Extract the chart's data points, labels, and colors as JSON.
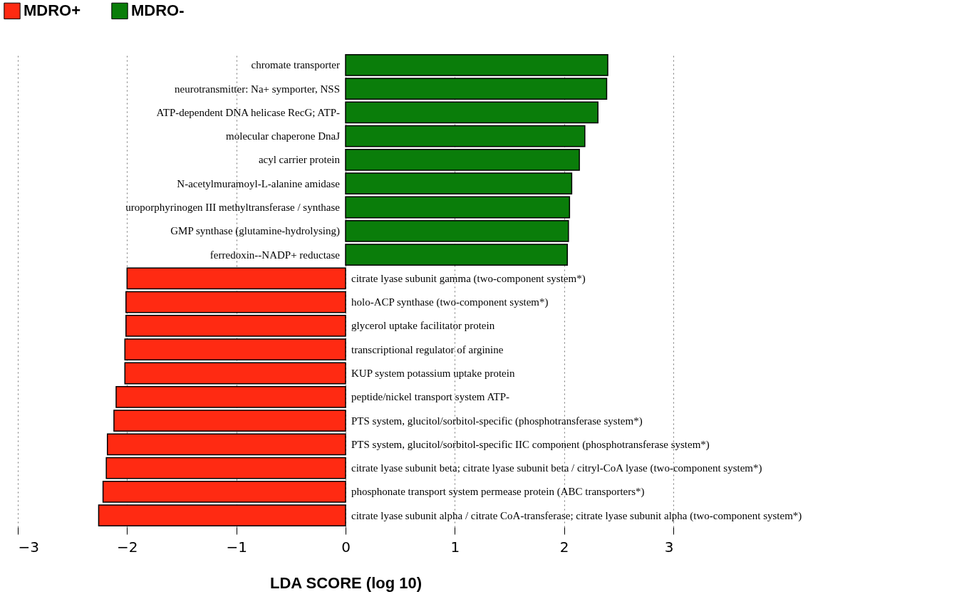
{
  "chart_data": {
    "type": "bar",
    "orientation": "horizontal",
    "xlabel": "LDA SCORE (log 10)",
    "xlim": [
      -3,
      3
    ],
    "xticks": [
      {
        "value": -3,
        "label": "−3"
      },
      {
        "value": -2,
        "label": "−2"
      },
      {
        "value": -1,
        "label": "−1"
      },
      0,
      1,
      2,
      3
    ],
    "grid": "x",
    "legend": "top left",
    "categories": [
      "chromate transporter",
      "neurotransmitter: Na+ symporter, NSS",
      "ATP-dependent DNA helicase RecG; ATP-",
      "molecular chaperone DnaJ",
      "acyl carrier protein",
      "N-acetylmuramoyl-L-alanine amidase",
      "uroporphyrinogen III methyltransferase / synthase",
      "GMP synthase (glutamine-hydrolysing)",
      "ferredoxin--NADP+ reductase",
      "citrate lyase subunit gamma (two-component system*)",
      "holo-ACP synthase (two-component system*)",
      "glycerol uptake facilitator protein",
      "transcriptional regulator of arginine",
      "KUP system potassium uptake protein",
      "peptide/nickel transport system ATP-",
      "PTS system, glucitol/sorbitol-specific (phosphotransferase system*)",
      "PTS system, glucitol/sorbitol-specific IIC component (phosphotransferase system*)",
      "citrate lyase subunit beta; citrate lyase subunit beta / citryl-CoA lyase (two-component system*)",
      "phosphonate transport system permease protein (ABC transporters*)",
      "citrate lyase subunit alpha / citrate CoA-transferase; citrate lyase subunit alpha (two-component system*)"
    ],
    "series": [
      {
        "name": "MDRO+",
        "color": "#ff2a12",
        "values": [
          null,
          null,
          null,
          null,
          null,
          null,
          null,
          null,
          null,
          -2.0,
          -2.01,
          -2.01,
          -2.02,
          -2.02,
          -2.1,
          -2.12,
          -2.18,
          -2.19,
          -2.22,
          -2.26
        ]
      },
      {
        "name": "MDRO-",
        "color": "#0a7d0a",
        "values": [
          2.4,
          2.39,
          2.31,
          2.19,
          2.14,
          2.07,
          2.05,
          2.04,
          2.03,
          null,
          null,
          null,
          null,
          null,
          null,
          null,
          null,
          null,
          null,
          null
        ]
      }
    ]
  }
}
